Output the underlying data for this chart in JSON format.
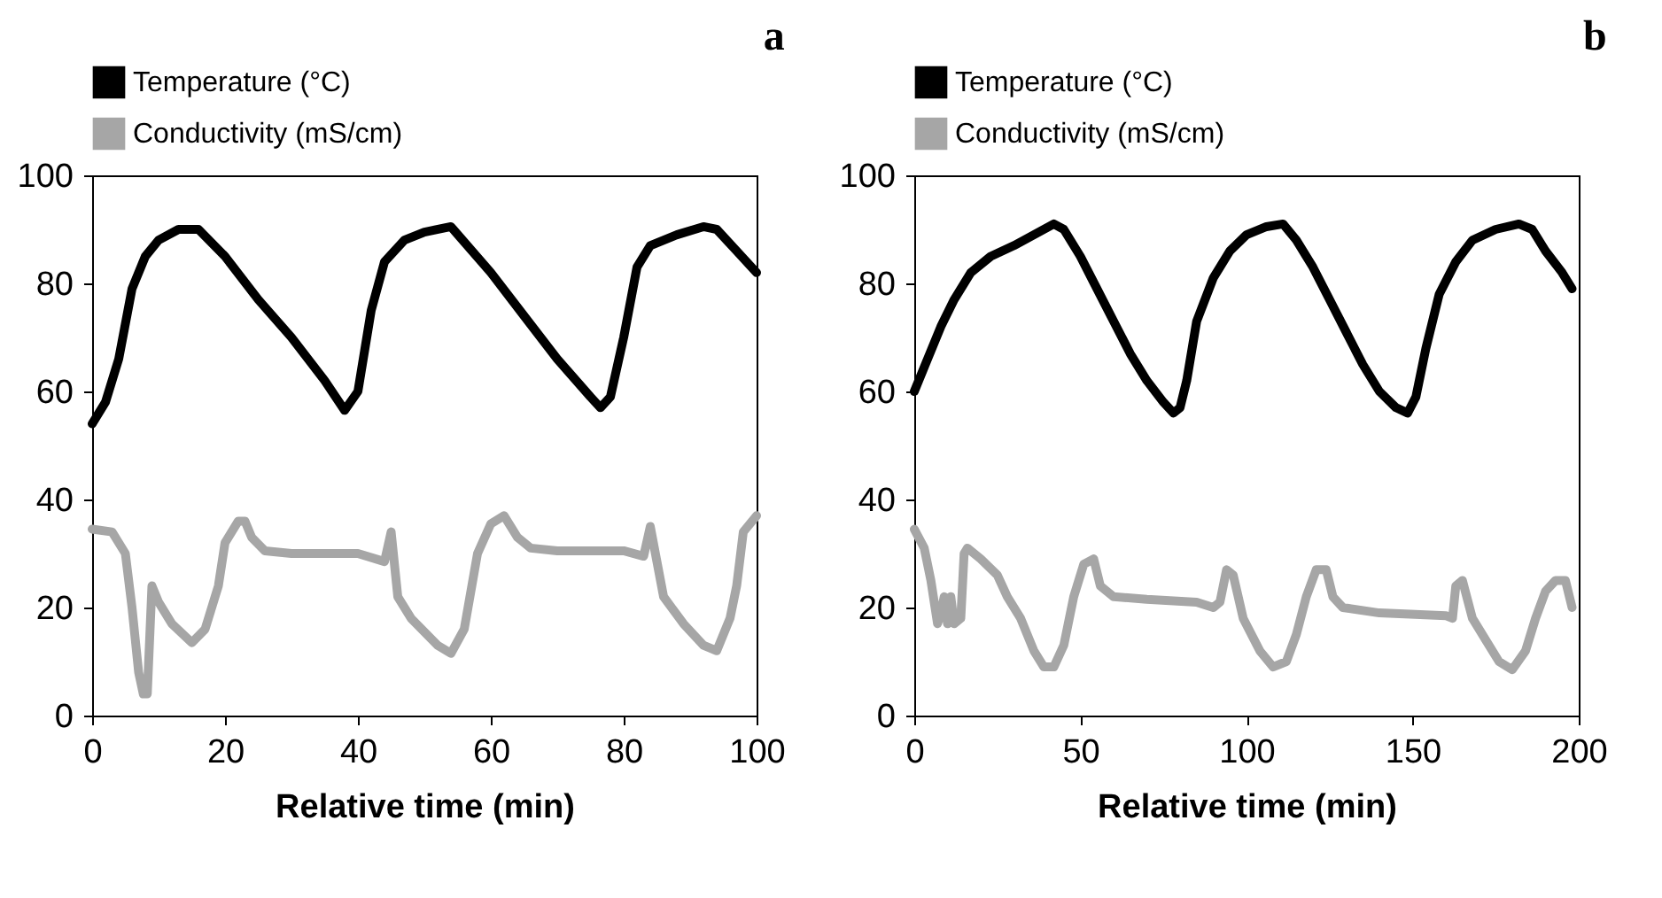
{
  "chart_data": [
    {
      "type": "line",
      "title": "a",
      "xlabel": "Relative time (min)",
      "xlim": [
        0,
        100
      ],
      "xticks": [
        0,
        20,
        40,
        60,
        80,
        100
      ],
      "ylim": [
        0,
        100
      ],
      "yticks": [
        0,
        20,
        40,
        60,
        80,
        100
      ],
      "grid": false,
      "legend": "top",
      "line_style": "solid",
      "marker": "none",
      "series": [
        {
          "name": "Temperature (°C)",
          "color": "#000000",
          "x": [
            0,
            2,
            4,
            6,
            8,
            10,
            13,
            16,
            20,
            25,
            30,
            35,
            38,
            40,
            42,
            44,
            47,
            50,
            54,
            60,
            65,
            70,
            75,
            76.5,
            78,
            80,
            82,
            84,
            88,
            92,
            94,
            97,
            100
          ],
          "values": [
            54,
            58,
            66,
            79,
            85,
            88,
            90,
            90,
            85,
            77,
            70,
            62,
            56.5,
            60,
            75,
            84,
            88,
            89.5,
            90.5,
            82,
            74,
            66,
            59,
            57,
            59,
            70,
            83,
            87,
            89,
            90.5,
            90,
            86,
            82
          ]
        },
        {
          "name": "Conductivity (mS/cm)",
          "color": "#a6a6a6",
          "x": [
            0,
            3,
            5,
            6,
            7,
            7.7,
            8.3,
            9,
            10,
            12,
            15,
            17,
            19,
            20,
            22,
            23,
            24,
            26,
            30,
            40,
            44,
            45,
            46,
            48,
            52,
            54,
            56,
            58,
            60,
            62,
            64,
            66,
            70,
            80,
            83,
            84,
            86,
            89,
            92,
            94,
            96,
            97,
            98,
            100
          ],
          "values": [
            34.5,
            34,
            30,
            20,
            8,
            4,
            4,
            24,
            21,
            17,
            13.5,
            16,
            24,
            32,
            36,
            36,
            33,
            30.5,
            30,
            30,
            28.5,
            34,
            22,
            18,
            13,
            11.5,
            16,
            30,
            35.5,
            37,
            33,
            31,
            30.5,
            30.5,
            29.5,
            35,
            22,
            17,
            13,
            12,
            18,
            24,
            34,
            37
          ]
        }
      ]
    },
    {
      "type": "line",
      "title": "b",
      "xlabel": "Relative time (min)",
      "xlim": [
        0,
        200
      ],
      "xticks": [
        0,
        50,
        100,
        150,
        200
      ],
      "ylim": [
        0,
        100
      ],
      "yticks": [
        0,
        20,
        40,
        60,
        80,
        100
      ],
      "grid": false,
      "legend": "top",
      "line_style": "solid",
      "marker": "none",
      "series": [
        {
          "name": "Temperature (°C)",
          "color": "#000000",
          "x": [
            0,
            4,
            8,
            12,
            17,
            23,
            30,
            36,
            42,
            45,
            50,
            55,
            60,
            65,
            70,
            75,
            78,
            80,
            82,
            85,
            90,
            95,
            100,
            106,
            111,
            115,
            120,
            125,
            130,
            135,
            140,
            145,
            148.5,
            151,
            154,
            158,
            163,
            168,
            175,
            182,
            186,
            190,
            195,
            198
          ],
          "values": [
            60,
            66,
            72,
            77,
            82,
            85,
            87,
            89,
            91,
            90,
            85,
            79,
            73,
            67,
            62,
            58,
            56,
            57,
            62,
            73,
            81,
            86,
            89,
            90.5,
            91,
            88,
            83,
            77,
            71,
            65,
            60,
            57,
            56,
            59,
            68,
            78,
            84,
            88,
            90,
            91,
            90,
            86,
            82,
            79
          ]
        },
        {
          "name": "Conductivity (mS/cm)",
          "color": "#a6a6a6",
          "x": [
            0,
            3,
            5,
            7,
            8,
            9,
            10,
            11,
            12,
            14,
            15,
            16,
            20,
            25,
            28,
            32,
            36,
            39,
            42,
            45,
            48,
            51,
            54,
            56,
            60,
            70,
            85,
            90,
            92,
            94,
            96,
            99,
            104,
            108,
            112,
            115,
            118,
            121,
            124,
            126,
            129,
            140,
            160,
            162,
            163,
            165,
            168,
            172,
            176,
            180,
            184,
            187,
            190,
            193,
            196,
            198
          ],
          "values": [
            34.5,
            31,
            25,
            17,
            19,
            22,
            17,
            22,
            17,
            18,
            30,
            31,
            29,
            26,
            22,
            18,
            12,
            9,
            9,
            13,
            22,
            28,
            29,
            24,
            22,
            21.5,
            21,
            20,
            21,
            27,
            26,
            18,
            12,
            9,
            10,
            15,
            22,
            27,
            27,
            22,
            20,
            19,
            18.5,
            18,
            24,
            25,
            18,
            14,
            10,
            8.5,
            12,
            18,
            23,
            25,
            25,
            20
          ]
        }
      ]
    }
  ]
}
